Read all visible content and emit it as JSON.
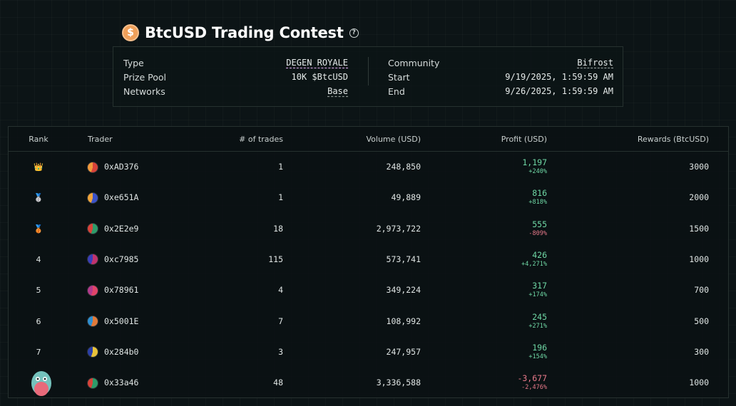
{
  "header": {
    "title": "BtcUSD Trading Contest",
    "coin_glyph": "$",
    "help_glyph": "?",
    "coin_color": "#f0a05a"
  },
  "info": {
    "type_label": "Type",
    "type_value": "DEGEN ROYALE",
    "prize_label": "Prize Pool",
    "prize_value": "10K $BtcUSD",
    "networks_label": "Networks",
    "networks_value": "Base",
    "community_label": "Community",
    "community_value": "Bifrost",
    "start_label": "Start",
    "start_value": "9/19/2025, 1:59:59 AM",
    "end_label": "End",
    "end_value": "9/26/2025, 1:59:59 AM"
  },
  "table": {
    "headers": {
      "rank": "Rank",
      "trader": "Trader",
      "trades": "# of trades",
      "volume": "Volume (USD)",
      "profit": "Profit (USD)",
      "rewards": "Rewards (BtcUSD)"
    },
    "rows": [
      {
        "rank": "👑",
        "trader": "0xAD376",
        "trades": "1",
        "volume": "248,850",
        "profit": "1,197",
        "pct": "+240%",
        "rewards": "3000",
        "avatar": [
          "#d8433a",
          "#f29a3c"
        ]
      },
      {
        "rank": "🥈",
        "trader": "0xe651A",
        "trades": "1",
        "volume": "49,889",
        "profit": "816",
        "pct": "+818%",
        "rewards": "2000",
        "avatar": [
          "#3b52c8",
          "#f0a43a"
        ]
      },
      {
        "rank": "🥉",
        "trader": "0x2E2e9",
        "trades": "18",
        "volume": "2,973,722",
        "profit": "555",
        "pct": "-809%",
        "rewards": "1500",
        "avatar": [
          "#2e9b6a",
          "#d8433a"
        ]
      },
      {
        "rank": "4",
        "trader": "0xc7985",
        "trades": "115",
        "volume": "573,741",
        "profit": "426",
        "pct": "+4,271%",
        "rewards": "1000",
        "avatar": [
          "#c0336e",
          "#3a3fb8"
        ]
      },
      {
        "rank": "5",
        "trader": "0x78961",
        "trades": "4",
        "volume": "349,224",
        "profit": "317",
        "pct": "+174%",
        "rewards": "700",
        "avatar": [
          "#e0446a",
          "#b23a8c"
        ]
      },
      {
        "rank": "6",
        "trader": "0x5001E",
        "trades": "7",
        "volume": "108,992",
        "profit": "245",
        "pct": "+271%",
        "rewards": "500",
        "avatar": [
          "#e07a3a",
          "#2f8fd0"
        ]
      },
      {
        "rank": "7",
        "trader": "0x284b0",
        "trades": "3",
        "volume": "247,957",
        "profit": "196",
        "pct": "+154%",
        "rewards": "300",
        "avatar": [
          "#e8c23a",
          "#2b3fa8"
        ]
      },
      {
        "rank": "",
        "trader": "0x33a46",
        "trades": "48",
        "volume": "3,336,588",
        "profit": "-3,677",
        "pct": "-2,476%",
        "rewards": "1000",
        "avatar": [
          "#2e9b6a",
          "#d8433a"
        ]
      }
    ]
  },
  "colors": {
    "positive": "#6fd7a5",
    "negative": "#e8798a",
    "accent_degen": "#c79ad6"
  }
}
